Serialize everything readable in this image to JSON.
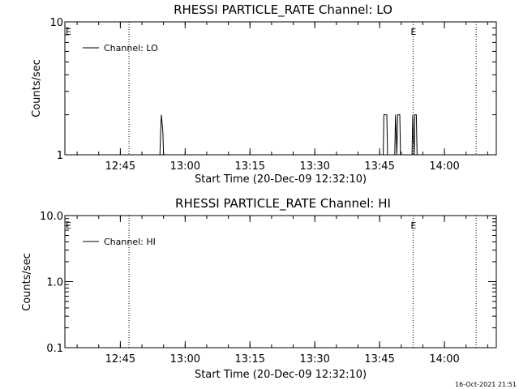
{
  "background": "#ffffff",
  "foreground": "#000000",
  "footer_timestamp": "16-Oct-2021 21:51",
  "chart_data": [
    {
      "type": "line",
      "title": "RHESSI PARTICLE_RATE Channel: LO",
      "xlabel": "Start Time (20-Dec-09 12:32:10)",
      "ylabel": "Counts/sec",
      "yscale": "log",
      "ylim": [
        1,
        10
      ],
      "yticks": [
        "1",
        "10"
      ],
      "xlim": [
        "12:32:10",
        "14:12:00"
      ],
      "xticks": [
        "12:45",
        "13:00",
        "13:15",
        "13:30",
        "13:45",
        "14:00"
      ],
      "grid": false,
      "legend_position": "top-left",
      "series": [
        {
          "name": "Channel: LO",
          "x": [
            "12:54:10",
            "12:54:20",
            "12:54:30",
            "12:54:50",
            "12:55:00",
            "13:45:50",
            "13:46:00",
            "13:46:40",
            "13:46:50",
            "13:48:30",
            "13:48:40",
            "13:49:00",
            "13:49:10",
            "13:49:40",
            "13:49:50",
            "13:52:30",
            "13:52:40",
            "13:53:00",
            "13:53:10",
            "13:53:30",
            "13:53:40"
          ],
          "y": [
            1,
            1.5,
            2,
            1.5,
            1,
            1,
            2,
            2,
            1,
            1,
            2,
            1,
            2,
            2,
            1,
            1,
            2,
            1,
            2,
            2,
            1
          ]
        }
      ],
      "markers": [
        {
          "label": "E",
          "time": "12:32:10"
        },
        {
          "label": "E",
          "time": "13:52:45"
        }
      ],
      "dotted_lines": [
        "12:47:00",
        "13:52:45",
        "14:07:20"
      ]
    },
    {
      "type": "line",
      "title": "RHESSI PARTICLE_RATE Channel: HI",
      "xlabel": "Start Time (20-Dec-09 12:32:10)",
      "ylabel": "Counts/sec",
      "yscale": "log",
      "ylim": [
        0.1,
        10
      ],
      "yticks": [
        "0.1",
        "1.0",
        "10.0"
      ],
      "xlim": [
        "12:32:10",
        "14:12:00"
      ],
      "xticks": [
        "12:45",
        "13:00",
        "13:15",
        "13:30",
        "13:45",
        "14:00"
      ],
      "grid": false,
      "legend_position": "top-left",
      "series": [
        {
          "name": "Channel: HI",
          "x": [],
          "y": []
        }
      ],
      "markers": [
        {
          "label": "E",
          "time": "12:32:10"
        },
        {
          "label": "E",
          "time": "13:52:45"
        }
      ],
      "dotted_lines": [
        "12:47:00",
        "13:52:45",
        "14:07:20"
      ]
    }
  ]
}
